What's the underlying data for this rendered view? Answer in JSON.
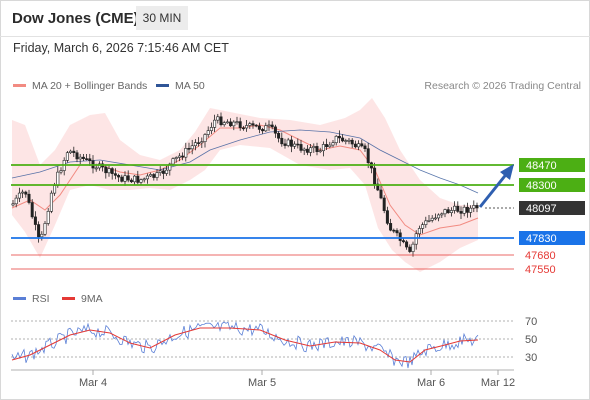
{
  "header": {
    "title": "Dow Jones (CME)",
    "timeframe": "30 MIN"
  },
  "datetime": "Friday, March 6, 2026 7:15:46 AM CET",
  "legend": {
    "bollinger": {
      "label": "MA 20 + Bollinger Bands",
      "color": "#f28b82"
    },
    "ma50": {
      "label": "MA 50",
      "color": "#2f5597"
    }
  },
  "credit": "Research © 2026 Trading Central",
  "price_levels": [
    {
      "label": "48470",
      "kind": "resistance",
      "color": "#4caf14"
    },
    {
      "label": "48300",
      "kind": "resistance",
      "color": "#4caf14"
    },
    {
      "label": "48097",
      "kind": "last",
      "color": "#333333"
    },
    {
      "label": "47830",
      "kind": "pivot",
      "color": "#1a73e8"
    },
    {
      "label": "47680",
      "kind": "support",
      "color": "#e53935"
    },
    {
      "label": "47550",
      "kind": "support",
      "color": "#e53935"
    }
  ],
  "rsi_legend": {
    "rsi": {
      "label": "RSI",
      "color": "#5a7fd6"
    },
    "ma9": {
      "label": "9MA",
      "color": "#e53935"
    }
  },
  "rsi_ticks": [
    "70",
    "50",
    "30"
  ],
  "x_labels": [
    "Mar 4",
    "Mar 5",
    "Mar 6",
    "Mar 12"
  ]
}
